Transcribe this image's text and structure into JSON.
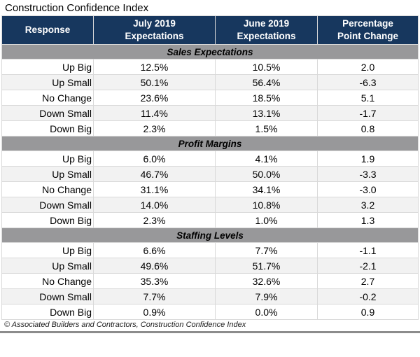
{
  "page": {
    "title": "Construction Confidence Index",
    "footnote": "© Associated Builders and Contractors, Construction Confidence Index"
  },
  "colors": {
    "header_bg": "#17375E",
    "header_text": "#FFFFFF",
    "section_bg": "#98989A",
    "row_bg": "#FFFFFF",
    "row_alt_bg": "#F2F2F2",
    "border": "#D9D9D9",
    "bottom_rule": "#8C8C8C"
  },
  "chart_data": {
    "type": "table",
    "title": "Construction Confidence Index",
    "columns": [
      "Response",
      "July 2019\nExpectations",
      "June 2019\nExpectations",
      "Percentage\nPoint Change"
    ],
    "sections": [
      {
        "label": "Sales Expectations",
        "rows": [
          [
            "Up Big",
            "12.5%",
            "10.5%",
            "2.0"
          ],
          [
            "Up Small",
            "50.1%",
            "56.4%",
            "-6.3"
          ],
          [
            "No Change",
            "23.6%",
            "18.5%",
            "5.1"
          ],
          [
            "Down Small",
            "11.4%",
            "13.1%",
            "-1.7"
          ],
          [
            "Down Big",
            "2.3%",
            "1.5%",
            "0.8"
          ]
        ]
      },
      {
        "label": "Profit Margins",
        "rows": [
          [
            "Up Big",
            "6.0%",
            "4.1%",
            "1.9"
          ],
          [
            "Up Small",
            "46.7%",
            "50.0%",
            "-3.3"
          ],
          [
            "No Change",
            "31.1%",
            "34.1%",
            "-3.0"
          ],
          [
            "Down Small",
            "14.0%",
            "10.8%",
            "3.2"
          ],
          [
            "Down Big",
            "2.3%",
            "1.0%",
            "1.3"
          ]
        ]
      },
      {
        "label": "Staffing Levels",
        "rows": [
          [
            "Up Big",
            "6.6%",
            "7.7%",
            "-1.1"
          ],
          [
            "Up Small",
            "49.6%",
            "51.7%",
            "-2.1"
          ],
          [
            "No Change",
            "35.3%",
            "32.6%",
            "2.7"
          ],
          [
            "Down Small",
            "7.7%",
            "7.9%",
            "-0.2"
          ],
          [
            "Down Big",
            "0.9%",
            "0.0%",
            "0.9"
          ]
        ]
      }
    ],
    "footnote": "© Associated Builders and Contractors, Construction Confidence Index"
  }
}
